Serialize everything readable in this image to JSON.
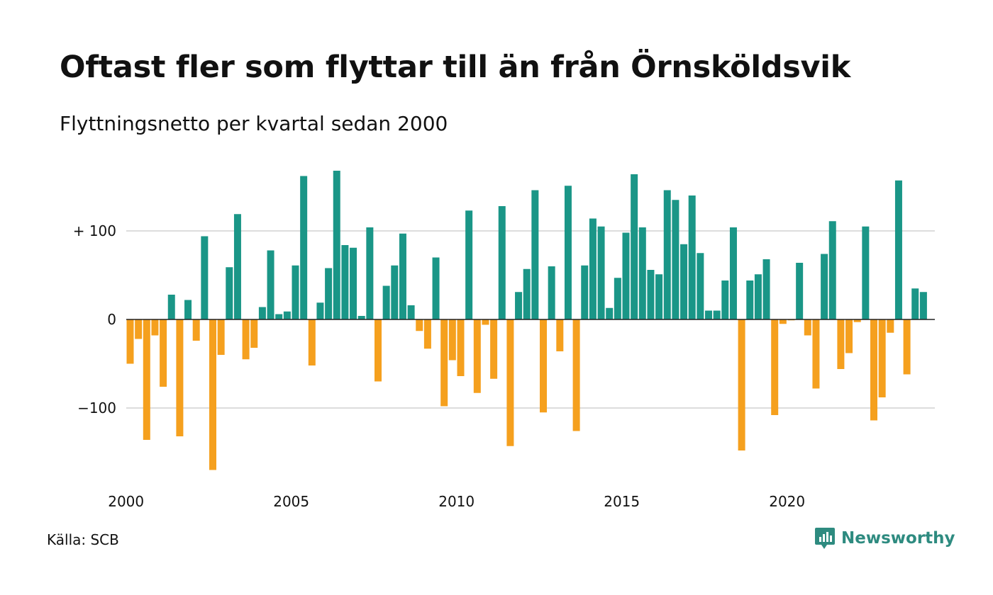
{
  "title": "Oftast fler som flyttar till än från Örnsköldsvik",
  "subtitle": "Flyttningsnetto per kvartal sedan 2000",
  "source": "Källa: SCB",
  "brand": {
    "name": "Newsworthy",
    "icon": "newsworthy-logo-icon",
    "color": "#2e8b80"
  },
  "colors": {
    "positive": "#1a9687",
    "negative": "#f5a01e",
    "grid": "#dddddd",
    "zero": "#222222"
  },
  "chart_data": {
    "type": "bar",
    "x_start": "2000 Q1",
    "x_tick_labels": [
      "2000",
      "2005",
      "2010",
      "2015",
      "2020"
    ],
    "y_tick_labels": [
      "+ 100",
      "0",
      "−100"
    ],
    "y_ticks": [
      100,
      0,
      -100
    ],
    "ylim": [
      -175,
      170
    ],
    "grid": true,
    "values": [
      -50,
      -22,
      -136,
      -18,
      -76,
      28,
      -132,
      22,
      -24,
      94,
      -170,
      -40,
      59,
      119,
      -45,
      -32,
      14,
      78,
      6,
      9,
      61,
      162,
      -52,
      19,
      58,
      168,
      84,
      81,
      4,
      104,
      -70,
      38,
      61,
      97,
      16,
      -13,
      -33,
      70,
      -98,
      -46,
      -64,
      123,
      -83,
      -6,
      -67,
      128,
      -143,
      31,
      57,
      146,
      -105,
      60,
      -36,
      151,
      -126,
      61,
      114,
      105,
      13,
      47,
      98,
      164,
      104,
      56,
      51,
      146,
      135,
      85,
      140,
      75,
      10,
      10,
      44,
      104,
      -148,
      44,
      51,
      68,
      -108,
      -5,
      -1,
      64,
      -18,
      -78,
      74,
      111,
      -56,
      -38,
      -3,
      105,
      -114,
      -88,
      -15,
      157,
      -62,
      35,
      31
    ]
  }
}
